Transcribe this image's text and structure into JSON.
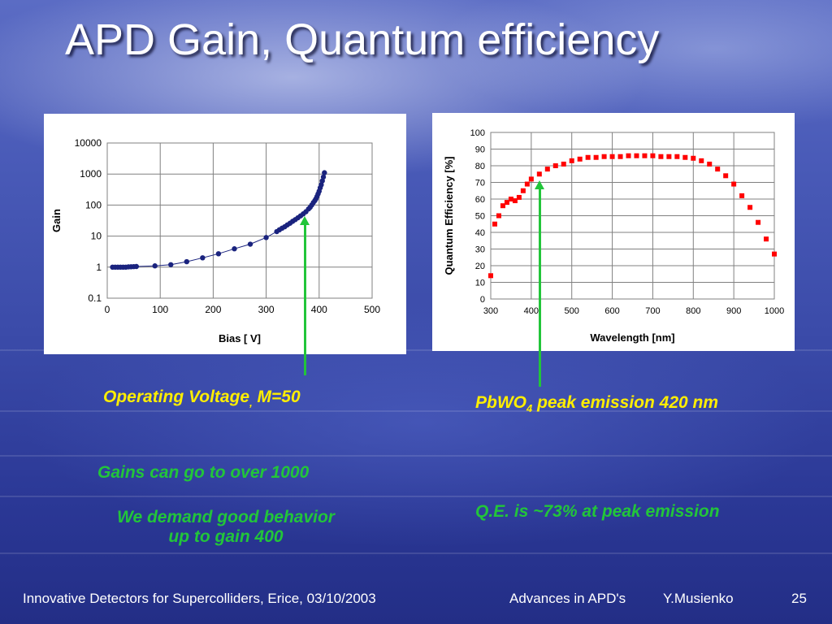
{
  "title": "APD  Gain, Quantum efficiency",
  "notes": {
    "operating_voltage": "Operating Voltage",
    "operating_voltage_comma": ",",
    "operating_voltage_m": " M=50",
    "pbwo_prefix": "PbWO",
    "pbwo_sub": "4",
    "pbwo_suffix": " peak emission 420 nm",
    "gains_over": "Gains can go to over 1000",
    "demand_line1": "We demand good behavior",
    "demand_line2": "up to gain 400",
    "qe_peak": "Q.E. is ~73% at peak emission"
  },
  "footer": {
    "left": "Innovative Detectors for Supercolliders, Erice, 03/10/2003",
    "middle": "Advances in APD's",
    "author": "Y.Musienko",
    "page": "25"
  },
  "colors": {
    "title": "#ffffff",
    "gain_marker": "#1a237e",
    "qe_marker": "#ff0000",
    "note_yellow": "#ffee00",
    "note_green": "#22c53a",
    "arrow": "#22c53a"
  },
  "chart_data": [
    {
      "type": "scatter",
      "title": "",
      "xlabel": "Bias [ V]",
      "ylabel": "Gain",
      "xlim": [
        0,
        500
      ],
      "ylim": [
        0.1,
        10000
      ],
      "yscale": "log",
      "grid": true,
      "xticks": [
        "0",
        "100",
        "200",
        "300",
        "400",
        "500"
      ],
      "yticks": [
        "0.1",
        "1",
        "10",
        "100",
        "1000",
        "10000"
      ],
      "series": [
        {
          "marker": "circle",
          "color": "#1a237e",
          "trendline": true,
          "x": [
            10,
            15,
            20,
            25,
            30,
            35,
            40,
            45,
            50,
            55,
            90,
            120,
            150,
            180,
            210,
            240,
            270,
            300,
            320,
            325,
            330,
            335,
            340,
            345,
            350,
            355,
            360,
            365,
            370,
            375,
            380,
            383,
            386,
            389,
            392,
            394,
            396,
            398,
            400,
            402,
            404,
            406,
            408,
            410
          ],
          "y": [
            1,
            1,
            1,
            1,
            1,
            1,
            1.02,
            1.03,
            1.04,
            1.05,
            1.1,
            1.2,
            1.5,
            2,
            2.7,
            3.9,
            5.5,
            9,
            14,
            16,
            18,
            20,
            23,
            26,
            30,
            34,
            39,
            45,
            52,
            61,
            75,
            85,
            100,
            120,
            140,
            160,
            190,
            230,
            280,
            360,
            450,
            600,
            800,
            1100
          ]
        }
      ]
    },
    {
      "type": "scatter",
      "title": "",
      "xlabel": "Wavelength [nm]",
      "ylabel": "Quantum Efficiency [%]",
      "xlim": [
        300,
        1000
      ],
      "ylim": [
        0,
        100
      ],
      "grid": true,
      "xticks": [
        "300",
        "400",
        "500",
        "600",
        "700",
        "800",
        "900",
        "1000"
      ],
      "yticks": [
        "0",
        "10",
        "20",
        "30",
        "40",
        "50",
        "60",
        "70",
        "80",
        "90",
        "100"
      ],
      "series": [
        {
          "marker": "square",
          "color": "#ff0000",
          "x": [
            300,
            310,
            320,
            330,
            340,
            350,
            360,
            370,
            380,
            390,
            400,
            420,
            440,
            460,
            480,
            500,
            520,
            540,
            560,
            580,
            600,
            620,
            640,
            660,
            680,
            700,
            720,
            740,
            760,
            780,
            800,
            820,
            840,
            860,
            880,
            900,
            920,
            940,
            960,
            980,
            1000
          ],
          "y": [
            14,
            45,
            50,
            56,
            58,
            60,
            59,
            61,
            65,
            69,
            72,
            75,
            78,
            80,
            81,
            83,
            84,
            85,
            85,
            85.5,
            85.5,
            85.5,
            86,
            86,
            86,
            86,
            85.5,
            85.5,
            85.5,
            85,
            84.5,
            83,
            81,
            78,
            74,
            69,
            62,
            55,
            46,
            36,
            27
          ]
        }
      ]
    }
  ]
}
